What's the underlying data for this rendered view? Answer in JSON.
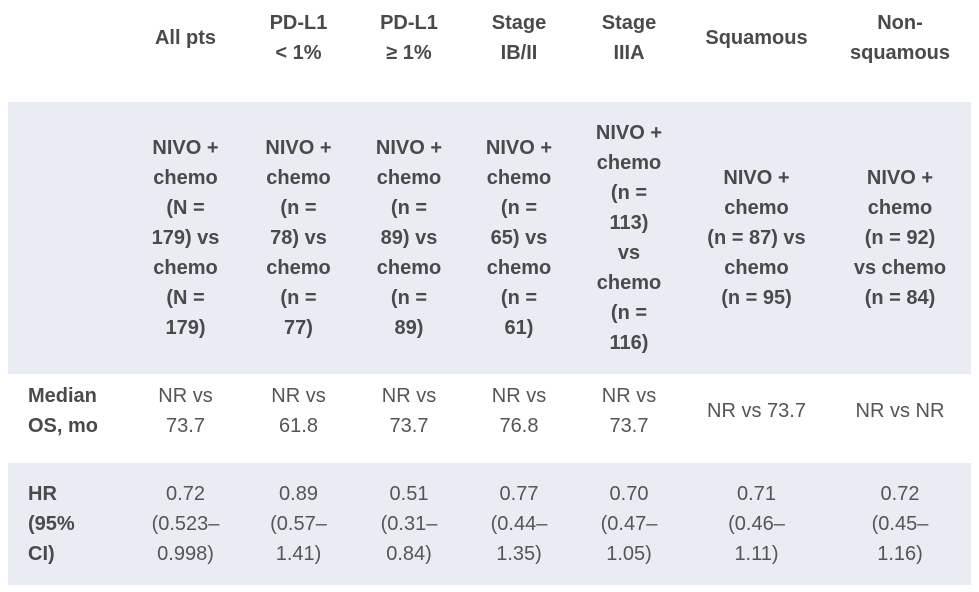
{
  "table": {
    "header": [
      "",
      "All pts",
      "PD-L1\n< 1%",
      "PD-L1\n≥ 1%",
      "Stage\nIB/II",
      "Stage\nIIIA",
      "Squamous",
      "Non-\nsquamous"
    ],
    "arms": [
      "",
      "NIVO +\nchemo\n(N =\n179) vs\nchemo\n(N =\n179)",
      "NIVO +\nchemo\n(n =\n78) vs\nchemo\n(n =\n77)",
      "NIVO +\nchemo\n(n =\n89) vs\nchemo\n(n =\n89)",
      "NIVO +\nchemo\n(n =\n65) vs\nchemo\n(n =\n61)",
      "NIVO +\nchemo\n(n =\n113)\nvs\nchemo\n(n =\n116)",
      "NIVO +\nchemo\n(n = 87) vs\nchemo\n(n = 95)",
      "NIVO +\nchemo\n(n = 92)\nvs chemo\n(n = 84)"
    ],
    "median_os": [
      "Median\nOS, mo",
      "NR vs\n73.7",
      "NR vs\n61.8",
      "NR vs\n73.7",
      "NR vs\n76.8",
      "NR vs\n73.7",
      "NR vs 73.7",
      "NR vs NR"
    ],
    "hr": [
      "HR\n(95%\nCI)",
      "0.72\n(0.523–\n0.998)",
      "0.89\n(0.57–\n1.41)",
      "0.51\n(0.31–\n0.84)",
      "0.77\n(0.44–\n1.35)",
      "0.70\n(0.47–\n1.05)",
      "0.71\n(0.46–\n1.11)",
      "0.72\n(0.45–\n1.16)"
    ]
  }
}
